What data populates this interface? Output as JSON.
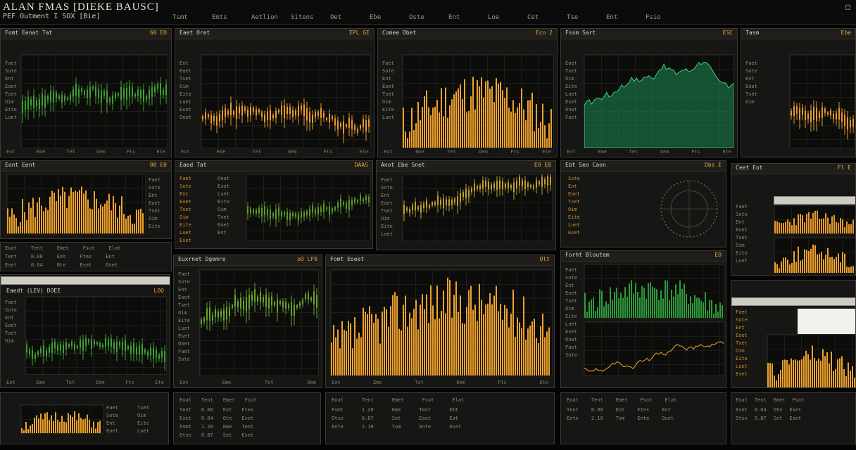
{
  "app": {
    "title": "ALAN FMAS [DIEKE BAUSC]",
    "subtitle": "PEF Outment I SOX [Bie]",
    "menu": [
      "Tsmt",
      "Emts",
      "Aetlion",
      "Sitens",
      "Oet",
      "Ebe",
      "Oste",
      "Ent",
      "Loe",
      "Cet",
      "Tse",
      "Ent",
      "Fsio"
    ],
    "window_icon": "close-icon"
  },
  "colors": {
    "background": "#050505",
    "panel": "#161614",
    "border": "#3a3934",
    "orange": "#f0a22c",
    "green": "#3fa033",
    "teal": "#1e8a55",
    "text": "#b9b39e"
  },
  "panels": [
    {
      "id": "p1",
      "title": "Fomt Eenat Tat",
      "value": "60 EO"
    },
    {
      "id": "p2",
      "title": "Eaet Oret",
      "value": "EPL GE"
    },
    {
      "id": "p3",
      "title": "Comee Obet",
      "value": "Eco 2"
    },
    {
      "id": "p4",
      "title": "Fssm Sart",
      "value": "ESC"
    },
    {
      "id": "p5",
      "title": "Tasm",
      "value": "Ebe"
    },
    {
      "id": "p6",
      "title": "Eont Eent",
      "value": "00 E0"
    },
    {
      "id": "p7",
      "title": "Eaed Tat",
      "value": "DAAS"
    },
    {
      "id": "p8",
      "title": "Anot Ebe Snet",
      "value": "EO E8"
    },
    {
      "id": "p9",
      "title": "Ebt Seo Caon",
      "value": "Dbs E"
    },
    {
      "id": "p10",
      "title": "Ceet Eot",
      "value": "Fl E"
    },
    {
      "id": "p11",
      "title": "Eaedt (LEV) DOEE",
      "value": "LOO"
    },
    {
      "id": "p12",
      "title": "Euxrnet Dgemre",
      "value": "oO LF0"
    },
    {
      "id": "p13",
      "title": "Fomt Eoeet",
      "value": "Olt"
    },
    {
      "id": "p14",
      "title": "Forht Bloutem",
      "value": "EO"
    }
  ],
  "side_labels": [
    "Faet",
    "Sote",
    "Ent",
    "Eoet",
    "Tset",
    "Oim",
    "Eite",
    "Luet",
    "Eset",
    "Onet"
  ],
  "axis_labels": [
    "Eot",
    "Eme",
    "Tet",
    "Oem",
    "Fts",
    "Ete"
  ],
  "table": {
    "headers": [
      "Eoat",
      "Tent",
      "Emet",
      "Fsot",
      "Elat"
    ],
    "rows": [
      [
        "Tent",
        "0.00",
        "Eot",
        "Ftes",
        "Ent"
      ],
      [
        "Eset",
        "0.04",
        "Ote",
        "Eset",
        "Oset"
      ],
      [
        "Fomt",
        "1.20",
        "Eme",
        "Tent",
        "Emt"
      ],
      [
        "Otse",
        "0.87",
        "Set",
        "Eset",
        "Eat"
      ],
      [
        "Ente",
        "2.10",
        "Tom",
        "Ente",
        "Oset"
      ]
    ]
  }
}
